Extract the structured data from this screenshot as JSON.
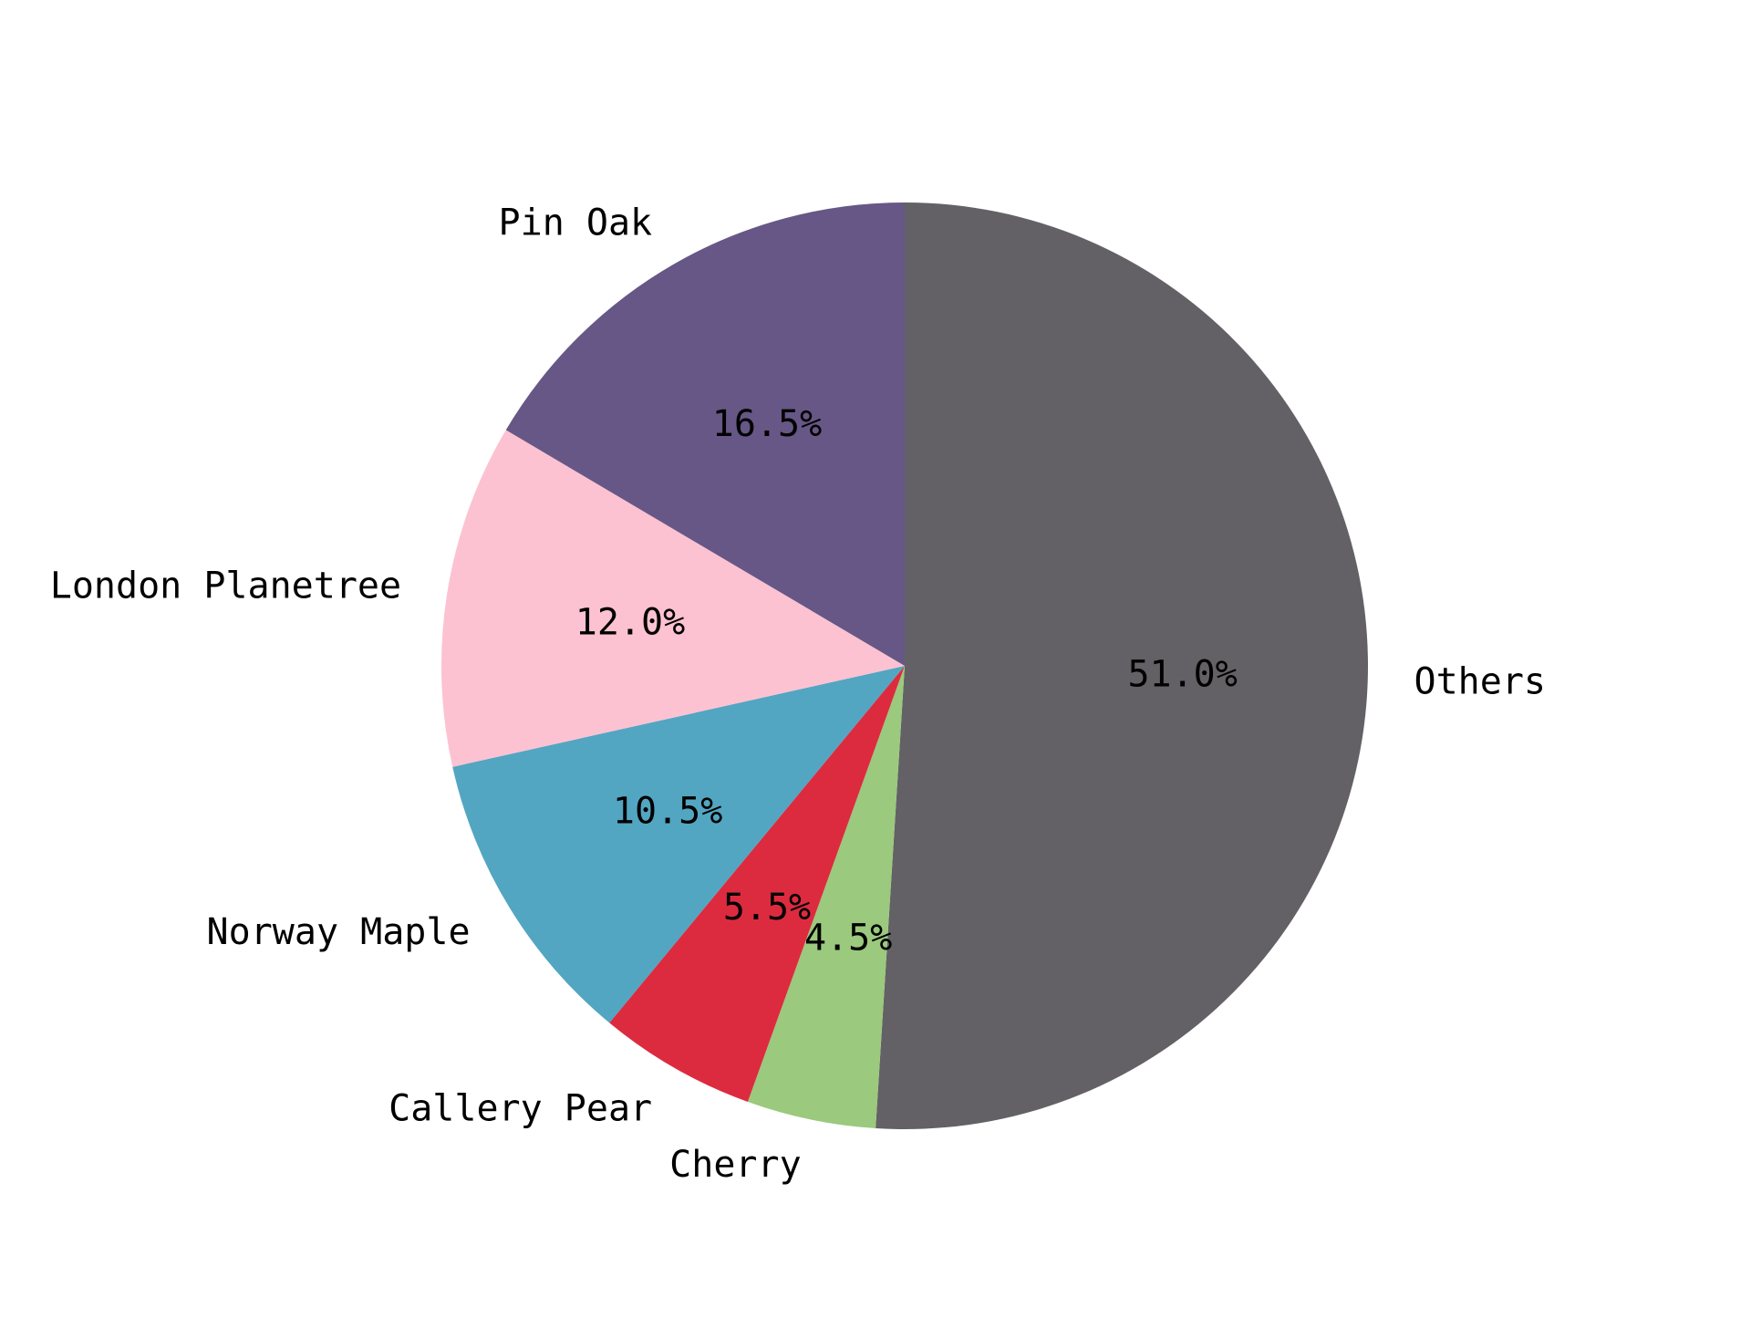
{
  "chart_data": {
    "type": "pie",
    "title": "",
    "categories": [
      "Others",
      "Cherry",
      "Callery Pear",
      "Norway Maple",
      "London Planetree",
      "Pin Oak"
    ],
    "values": [
      51.0,
      4.5,
      5.5,
      10.5,
      12.0,
      16.5
    ],
    "value_labels": [
      "51.0%",
      "4.5%",
      "5.5%",
      "10.5%",
      "12.0%",
      "16.5%"
    ],
    "colors": [
      "#636165",
      "#9bc97d",
      "#dc2b3f",
      "#52a6c2",
      "#fcc2d1",
      "#665786"
    ],
    "start_angle_deg": 90,
    "direction": "clockwise",
    "legend": "none"
  }
}
